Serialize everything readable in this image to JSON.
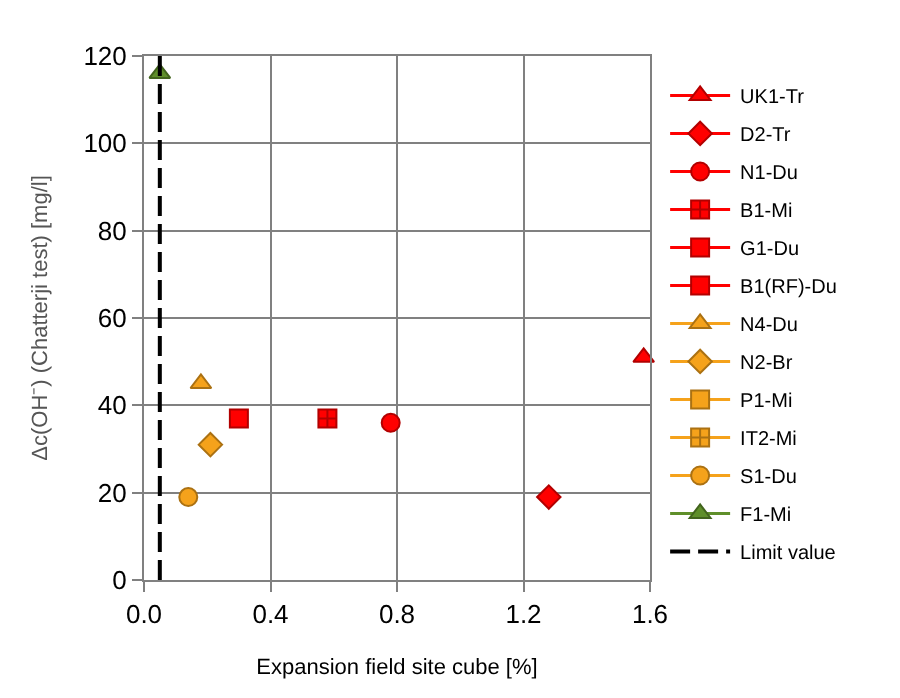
{
  "chart_data": {
    "type": "scatter",
    "xlabel": "Expansion field site cube [%]",
    "ylabel": "Δc(OH⁻) (Chatterji test) [mg/l]",
    "xlim": [
      0,
      1.6
    ],
    "xticks": [
      {
        "value": 0,
        "label": "0.0"
      },
      0.4,
      0.8,
      1.2,
      1.6
    ],
    "ylim": [
      0,
      120
    ],
    "yticks": [
      0,
      20,
      40,
      60,
      80,
      100,
      120
    ],
    "grid": true,
    "legend": "right",
    "series": [
      {
        "name": "UK1-Tr",
        "color": "#ff0000",
        "marker": "triangle",
        "x": [
          1.58
        ],
        "values": [
          51
        ]
      },
      {
        "name": "D2-Tr",
        "color": "#ff0000",
        "marker": "diamond",
        "x": [
          1.28
        ],
        "values": [
          19
        ]
      },
      {
        "name": "N1-Du",
        "color": "#ff0000",
        "marker": "circle",
        "x": [
          0.78
        ],
        "values": [
          36
        ]
      },
      {
        "name": "B1-Mi",
        "color": "#ff0000",
        "marker": "cross",
        "x": [
          0.58
        ],
        "values": [
          37
        ]
      },
      {
        "name": "G1-Du",
        "color": "#ff0000",
        "marker": "square",
        "x": [
          null
        ],
        "values": [
          null
        ]
      },
      {
        "name": "B1(RF)-Du",
        "color": "#ff0000",
        "marker": "square",
        "x": [
          0.3
        ],
        "values": [
          37
        ]
      },
      {
        "name": "N4-Du",
        "color": "#f5a21b",
        "marker": "triangle",
        "x": [
          0.18
        ],
        "values": [
          45
        ]
      },
      {
        "name": "N2-Br",
        "color": "#f5a21b",
        "marker": "diamond",
        "x": [
          0.21
        ],
        "values": [
          31
        ]
      },
      {
        "name": "P1-Mi",
        "color": "#f5a21b",
        "marker": "square",
        "x": [
          null
        ],
        "values": [
          null
        ]
      },
      {
        "name": "IT2-Mi",
        "color": "#f5a21b",
        "marker": "cross",
        "x": [
          null
        ],
        "values": [
          null
        ]
      },
      {
        "name": "S1-Du",
        "color": "#f5a21b",
        "marker": "circle",
        "x": [
          0.14
        ],
        "values": [
          19
        ]
      },
      {
        "name": "F1-Mi",
        "color": "#5f8f2a",
        "marker": "triangle",
        "x": [
          0.05
        ],
        "values": [
          116
        ]
      },
      {
        "name": "Limit value",
        "type": "line",
        "color": "#000000",
        "marker": "none",
        "line_style": "dashed",
        "x": [
          0.05,
          0.05
        ],
        "values": [
          0,
          120
        ]
      }
    ]
  }
}
